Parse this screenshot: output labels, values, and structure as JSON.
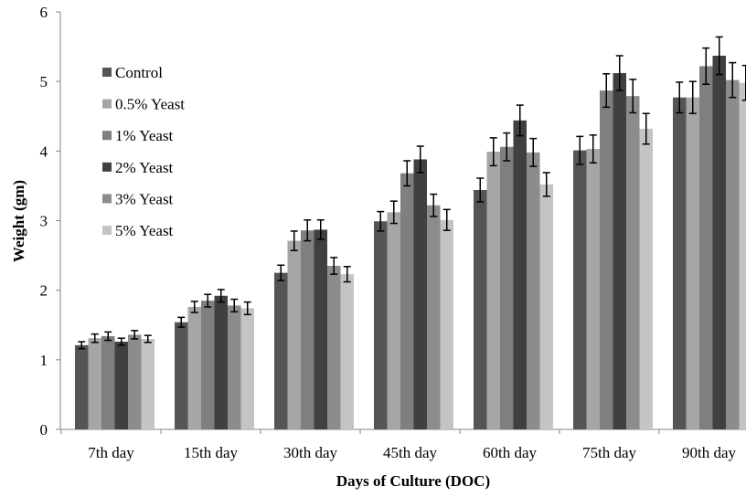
{
  "chart_data": {
    "type": "bar",
    "title": "",
    "xlabel": "Days of Culture (DOC)",
    "ylabel": "Weight (gm)",
    "ylim": [
      0,
      6
    ],
    "yticks": [
      "0",
      "1",
      "2",
      "3",
      "4",
      "5",
      "6"
    ],
    "grid": false,
    "legend_position": "top-left",
    "error_bars": true,
    "categories": [
      "7th day",
      "15th day",
      "30th day",
      "45th day",
      "60th day",
      "75th day",
      "90th day"
    ],
    "series": [
      {
        "name": "Control",
        "color": "#555555",
        "values": [
          1.21,
          1.54,
          2.25,
          2.99,
          3.44,
          4.01,
          4.77
        ],
        "errors": [
          0.05,
          0.07,
          0.11,
          0.14,
          0.17,
          0.2,
          0.22
        ]
      },
      {
        "name": "0.5% Yeast",
        "color": "#a6a6a6",
        "values": [
          1.31,
          1.76,
          2.71,
          3.12,
          3.99,
          4.03,
          4.77
        ],
        "errors": [
          0.06,
          0.08,
          0.14,
          0.16,
          0.2,
          0.2,
          0.23
        ]
      },
      {
        "name": "1% Yeast",
        "color": "#7f7f7f",
        "values": [
          1.34,
          1.85,
          2.86,
          3.68,
          4.06,
          4.87,
          5.22
        ],
        "errors": [
          0.06,
          0.09,
          0.15,
          0.18,
          0.2,
          0.24,
          0.26
        ]
      },
      {
        "name": "2% Yeast",
        "color": "#404040",
        "values": [
          1.26,
          1.92,
          2.87,
          3.88,
          4.44,
          5.12,
          5.37
        ],
        "errors": [
          0.05,
          0.09,
          0.14,
          0.19,
          0.22,
          0.25,
          0.27
        ]
      },
      {
        "name": "3% Yeast",
        "color": "#8c8c8c",
        "values": [
          1.36,
          1.78,
          2.35,
          3.22,
          3.98,
          4.79,
          5.02
        ],
        "errors": [
          0.06,
          0.09,
          0.12,
          0.16,
          0.2,
          0.24,
          0.25
        ]
      },
      {
        "name": "5% Yeast",
        "color": "#c4c4c4",
        "values": [
          1.3,
          1.74,
          2.23,
          3.01,
          3.52,
          4.32,
          4.98
        ],
        "errors": [
          0.05,
          0.09,
          0.11,
          0.15,
          0.17,
          0.22,
          0.25
        ]
      }
    ]
  }
}
